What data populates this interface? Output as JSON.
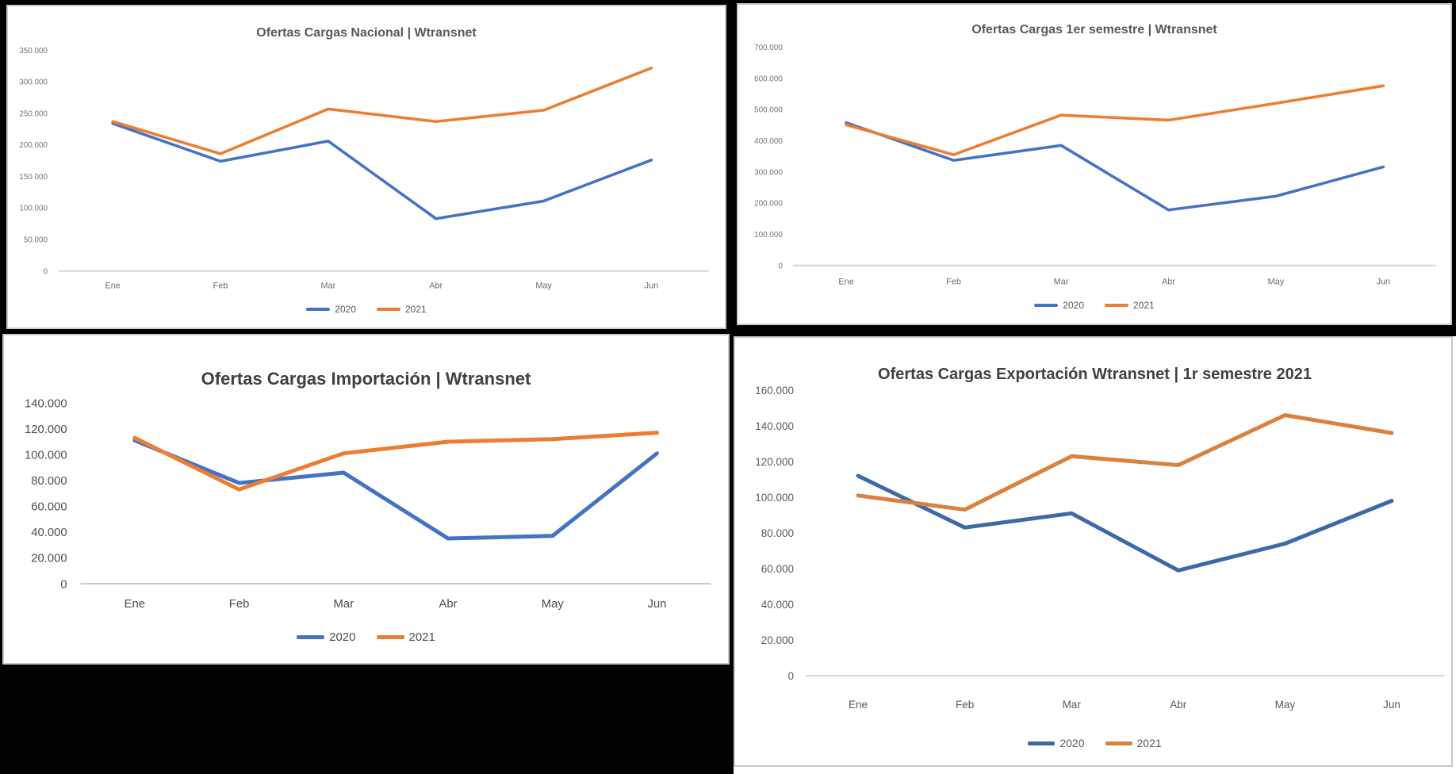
{
  "page": {
    "background": "#000000"
  },
  "chart_data": [
    {
      "type": "line",
      "title": "Ofertas Cargas Nacional | Wtransnet",
      "categories": [
        "Ene",
        "Feb",
        "Mar",
        "Abr",
        "May",
        "Jun"
      ],
      "series": [
        {
          "name": "2020",
          "color": "#4472C4",
          "values": [
            234000,
            174000,
            206000,
            83000,
            111000,
            176000
          ]
        },
        {
          "name": "2021",
          "color": "#ED7D31",
          "values": [
            237000,
            186000,
            257000,
            237000,
            255000,
            322000
          ]
        }
      ],
      "ylim": [
        0,
        350000
      ],
      "ytick_step": 50000,
      "ytick_labels": [
        "0",
        "50.000",
        "100.000",
        "150.000",
        "200.000",
        "250.000",
        "300.000",
        "350.000"
      ],
      "grid": false,
      "legend_position": "bottom",
      "xlabel": "",
      "ylabel": ""
    },
    {
      "type": "line",
      "title": "Ofertas Cargas 1er semestre | Wtransnet",
      "categories": [
        "Ene",
        "Feb",
        "Mar",
        "Abr",
        "May",
        "Jun"
      ],
      "series": [
        {
          "name": "2020",
          "color": "#4472C4",
          "values": [
            458000,
            337000,
            385000,
            178000,
            222000,
            316000
          ]
        },
        {
          "name": "2021",
          "color": "#ED7D31",
          "values": [
            451000,
            355000,
            482000,
            466000,
            520000,
            576000
          ]
        }
      ],
      "ylim": [
        0,
        700000
      ],
      "ytick_step": 100000,
      "ytick_labels": [
        "0",
        "100.000",
        "200.000",
        "300.000",
        "400.000",
        "500.000",
        "600.000",
        "700.000"
      ],
      "grid": false,
      "legend_position": "bottom",
      "xlabel": "",
      "ylabel": ""
    },
    {
      "type": "line",
      "title": "Ofertas Cargas Importación | Wtransnet",
      "categories": [
        "Ene",
        "Feb",
        "Mar",
        "Abr",
        "May",
        "Jun"
      ],
      "series": [
        {
          "name": "2020",
          "color": "#4472C4",
          "values": [
            111000,
            78000,
            86000,
            35000,
            37000,
            101000
          ]
        },
        {
          "name": "2021",
          "color": "#ED7D31",
          "values": [
            113000,
            73000,
            101000,
            110000,
            112000,
            117000
          ]
        }
      ],
      "ylim": [
        0,
        140000
      ],
      "ytick_step": 20000,
      "ytick_labels": [
        "0",
        "20.000",
        "40.000",
        "60.000",
        "80.000",
        "100.000",
        "120.000",
        "140.000"
      ],
      "grid": false,
      "legend_position": "bottom",
      "xlabel": "",
      "ylabel": ""
    },
    {
      "type": "line",
      "title": "Ofertas Cargas Exportación Wtransnet | 1r semestre 2021",
      "categories": [
        "Ene",
        "Feb",
        "Mar",
        "Abr",
        "May",
        "Jun"
      ],
      "series": [
        {
          "name": "2020",
          "color": "#3C69A7",
          "values": [
            112000,
            83000,
            91000,
            59000,
            74000,
            98000
          ]
        },
        {
          "name": "2021",
          "color": "#D9813D",
          "values": [
            101000,
            93000,
            123000,
            118000,
            146000,
            136000
          ]
        }
      ],
      "ylim": [
        0,
        160000
      ],
      "ytick_step": 20000,
      "ytick_labels": [
        "0",
        "20.000",
        "40.000",
        "60.000",
        "80.000",
        "100.000",
        "120.000",
        "140.000",
        "160.000"
      ],
      "grid": false,
      "legend_position": "bottom",
      "xlabel": "",
      "ylabel": ""
    }
  ]
}
